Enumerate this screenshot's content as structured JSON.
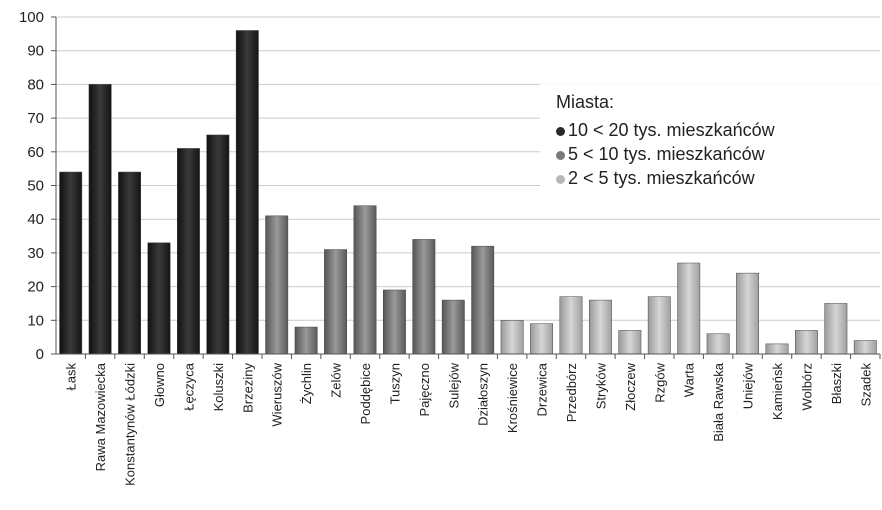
{
  "chart_data": {
    "type": "bar",
    "categories": [
      "Łask",
      "Rawa Mazowiecka",
      "Konstantynów Łódzki",
      "Głowno",
      "Łęczyca",
      "Koluszki",
      "Brzeziny",
      "Wieruszów",
      "Żychlin",
      "Zelów",
      "Poddębice",
      "Tuszyn",
      "Pajęczno",
      "Sulejów",
      "Działoszyn",
      "Krośniewice",
      "Drzewica",
      "Przedbórz",
      "Stryków",
      "Złoczew",
      "Rzgów",
      "Warta",
      "Biała Rawska",
      "Uniejów",
      "Kamieńsk",
      "Wolbórz",
      "Błaszki",
      "Szadek"
    ],
    "values": [
      54,
      80,
      54,
      33,
      61,
      65,
      96,
      41,
      8,
      31,
      44,
      19,
      34,
      16,
      32,
      10,
      9,
      17,
      16,
      7,
      17,
      27,
      6,
      24,
      3,
      7,
      15,
      4
    ],
    "groups": [
      0,
      0,
      0,
      0,
      0,
      0,
      0,
      1,
      1,
      1,
      1,
      1,
      1,
      1,
      1,
      2,
      2,
      2,
      2,
      2,
      2,
      2,
      2,
      2,
      2,
      2,
      2,
      2
    ],
    "ylim": [
      0,
      100
    ],
    "yticks": [
      0,
      10,
      20,
      30,
      40,
      50,
      60,
      70,
      80,
      90,
      100
    ],
    "grid": true,
    "legend_placement": "top-right",
    "legend": {
      "title": "Miasta:",
      "items": [
        {
          "label": "10 < 20 tys. mieszkańców",
          "color": "#2a2a2a"
        },
        {
          "label": "5 < 10 tys. mieszkańców",
          "color": "#7a7a7a"
        },
        {
          "label": "2 < 5 tys. mieszkańców",
          "color": "#b8b8b8"
        }
      ]
    },
    "colors": {
      "dark": "#1e1e1e",
      "medium": "#6e6e6e",
      "light": "#b0b0b0",
      "grid": "#cccccc",
      "axis": "#555555"
    }
  }
}
